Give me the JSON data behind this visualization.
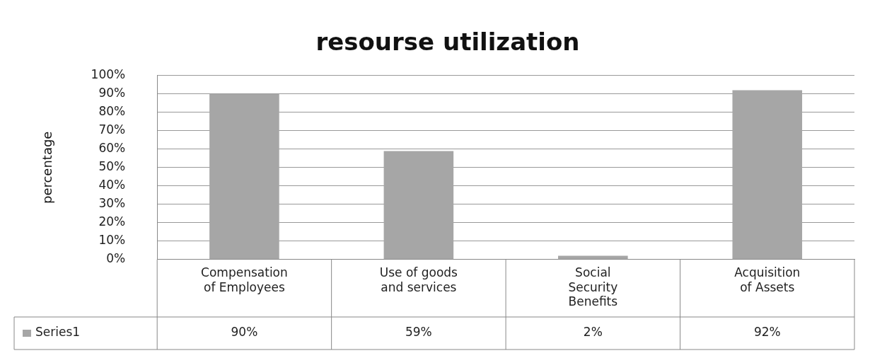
{
  "chart_data": {
    "type": "bar",
    "title": "resourse utilization",
    "ylabel": "percentage",
    "categories": [
      "Compensation of Employees",
      "Use of goods and services",
      "Social Security Benefits",
      "Acquisition of Assets"
    ],
    "series": [
      {
        "name": "Series1",
        "color": "#a6a6a6",
        "values": [
          90,
          59,
          2,
          92
        ],
        "value_labels": [
          "90%",
          "59%",
          "2%",
          "92%"
        ]
      }
    ],
    "ylim": [
      0,
      100
    ],
    "yticks": [
      {
        "value": 0,
        "label": "0%"
      },
      {
        "value": 10,
        "label": "10%"
      },
      {
        "value": 20,
        "label": "20%"
      },
      {
        "value": 30,
        "label": "30%"
      },
      {
        "value": 40,
        "label": "40%"
      },
      {
        "value": 50,
        "label": "50%"
      },
      {
        "value": 60,
        "label": "60%"
      },
      {
        "value": 70,
        "label": "70%"
      },
      {
        "value": 80,
        "label": "80%"
      },
      {
        "value": 90,
        "label": "90%"
      },
      {
        "value": 100,
        "label": "100%"
      }
    ],
    "grid": "y",
    "legend": "bottom"
  }
}
